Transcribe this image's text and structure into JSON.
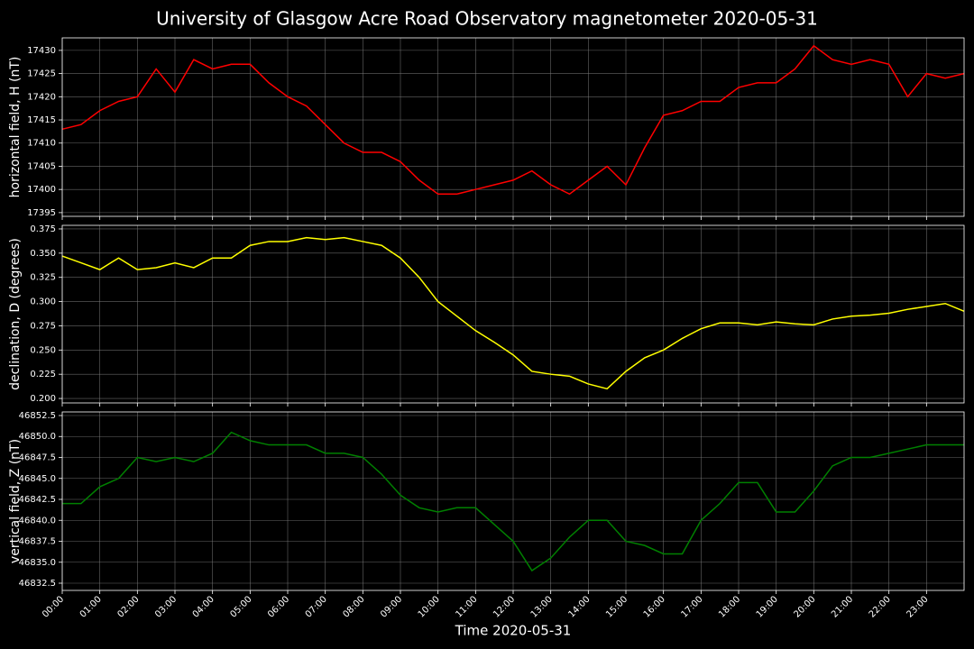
{
  "title": "University of Glasgow Acre Road Observatory magnetometer 2020-05-31",
  "chart_data": [
    {
      "type": "line",
      "y_label": "horizontal field, H (nT)",
      "color": "#ff0000",
      "grid": true,
      "x": [
        0,
        0.5,
        1,
        1.5,
        2,
        2.5,
        3,
        3.5,
        4,
        4.5,
        5,
        5.5,
        6,
        6.5,
        7,
        7.5,
        8,
        8.5,
        9,
        9.5,
        10,
        10.5,
        11,
        11.5,
        12,
        12.5,
        13,
        13.5,
        14,
        14.5,
        15,
        15.5,
        16,
        16.5,
        17,
        17.5,
        18,
        18.5,
        19,
        19.5,
        20,
        20.5,
        21,
        21.5,
        22,
        22.5,
        23,
        23.5,
        24
      ],
      "values": [
        17413,
        17414,
        17417,
        17419,
        17420,
        17426,
        17421,
        17428,
        17426,
        17427,
        17427,
        17423,
        17420,
        17418,
        17414,
        17410,
        17408,
        17408,
        17406,
        17402,
        17399,
        17399,
        17400,
        17401,
        17402,
        17404,
        17401,
        17399,
        17402,
        17405,
        17401,
        17409,
        17416,
        17417,
        17419,
        17419,
        17422,
        17423,
        17423,
        17426,
        17431,
        17428,
        17427,
        17428,
        17427,
        17420,
        17425,
        17424,
        17425
      ],
      "xlim": [
        0,
        24
      ],
      "ylim": [
        17394.2,
        17432.7
      ],
      "yticks": [
        17395,
        17400,
        17405,
        17410,
        17415,
        17420,
        17425,
        17430
      ]
    },
    {
      "type": "line",
      "y_label": "declination, D (degrees)",
      "color": "#ffff00",
      "grid": true,
      "x": [
        0,
        0.5,
        1,
        1.5,
        2,
        2.5,
        3,
        3.5,
        4,
        4.5,
        5,
        5.5,
        6,
        6.5,
        7,
        7.5,
        8,
        8.5,
        9,
        9.5,
        10,
        10.5,
        11,
        11.5,
        12,
        12.5,
        13,
        13.5,
        14,
        14.5,
        15,
        15.5,
        16,
        16.5,
        17,
        17.5,
        18,
        18.5,
        19,
        19.5,
        20,
        20.5,
        21,
        21.5,
        22,
        22.5,
        23,
        23.5,
        24
      ],
      "values": [
        0.347,
        0.34,
        0.333,
        0.345,
        0.333,
        0.335,
        0.34,
        0.335,
        0.345,
        0.345,
        0.358,
        0.362,
        0.362,
        0.366,
        0.364,
        0.366,
        0.362,
        0.358,
        0.345,
        0.325,
        0.3,
        0.285,
        0.27,
        0.258,
        0.245,
        0.228,
        0.225,
        0.223,
        0.215,
        0.21,
        0.228,
        0.242,
        0.25,
        0.262,
        0.272,
        0.278,
        0.278,
        0.276,
        0.279,
        0.277,
        0.276,
        0.282,
        0.285,
        0.286,
        0.288,
        0.292,
        0.295,
        0.298,
        0.29
      ],
      "xlim": [
        0,
        24
      ],
      "ylim": [
        0.1954,
        0.3787
      ],
      "yticks": [
        {
          "value": 0.2,
          "label": "0.200"
        },
        {
          "value": 0.225,
          "label": "0.225"
        },
        {
          "value": 0.25,
          "label": "0.250"
        },
        {
          "value": 0.275,
          "label": "0.275"
        },
        {
          "value": 0.3,
          "label": "0.300"
        },
        {
          "value": 0.325,
          "label": "0.325"
        },
        {
          "value": 0.35,
          "label": "0.350"
        },
        {
          "value": 0.375,
          "label": "0.375"
        }
      ]
    },
    {
      "type": "line",
      "y_label": "vertical field, Z (nT)",
      "x_label": "Time 2020-05-31",
      "color": "#008000",
      "grid": true,
      "x": [
        0,
        0.5,
        1,
        1.5,
        2,
        2.5,
        3,
        3.5,
        4,
        4.5,
        5,
        5.5,
        6,
        6.5,
        7,
        7.5,
        8,
        8.5,
        9,
        9.5,
        10,
        10.5,
        11,
        11.5,
        12,
        12.5,
        13,
        13.5,
        14,
        14.5,
        15,
        15.5,
        16,
        16.5,
        17,
        17.5,
        18,
        18.5,
        19,
        19.5,
        20,
        20.5,
        21,
        21.5,
        22,
        22.5,
        23,
        23.5,
        24
      ],
      "values": [
        46842,
        46842,
        46844,
        46845,
        46847.5,
        46847,
        46847.5,
        46847,
        46848,
        46850.5,
        46849.5,
        46849,
        46849,
        46849,
        46848,
        46848,
        46847.5,
        46845.5,
        46843,
        46841.5,
        46841,
        46841.5,
        46841.5,
        46839.5,
        46837.5,
        46834,
        46835.5,
        46838,
        46840,
        46840,
        46837.5,
        46837,
        46836,
        46836,
        46840,
        46842,
        46844.5,
        46844.5,
        46841,
        46841,
        46843.5,
        46846.5,
        46847.5,
        46847.5,
        46848,
        46848.5,
        46849,
        46849,
        46849
      ],
      "xlim": [
        0,
        24
      ],
      "ylim": [
        46831.64,
        46852.93
      ],
      "yticks": [
        {
          "value": 46832.5,
          "label": "46832.5"
        },
        {
          "value": 46835,
          "label": "46835.0"
        },
        {
          "value": 46837.5,
          "label": "46837.5"
        },
        {
          "value": 46840,
          "label": "46840.0"
        },
        {
          "value": 46842.5,
          "label": "46842.5"
        },
        {
          "value": 46845,
          "label": "46845.0"
        },
        {
          "value": 46847.5,
          "label": "46847.5"
        },
        {
          "value": 46850,
          "label": "46850.0"
        },
        {
          "value": 46852.5,
          "label": "46852.5"
        }
      ],
      "xticks": [
        {
          "value": 0,
          "label": "00:00"
        },
        {
          "value": 1,
          "label": "01:00"
        },
        {
          "value": 2,
          "label": "02:00"
        },
        {
          "value": 3,
          "label": "03:00"
        },
        {
          "value": 4,
          "label": "04:00"
        },
        {
          "value": 5,
          "label": "05:00"
        },
        {
          "value": 6,
          "label": "06:00"
        },
        {
          "value": 7,
          "label": "07:00"
        },
        {
          "value": 8,
          "label": "08:00"
        },
        {
          "value": 9,
          "label": "09:00"
        },
        {
          "value": 10,
          "label": "10:00"
        },
        {
          "value": 11,
          "label": "11:00"
        },
        {
          "value": 12,
          "label": "12:00"
        },
        {
          "value": 13,
          "label": "13:00"
        },
        {
          "value": 14,
          "label": "14:00"
        },
        {
          "value": 15,
          "label": "15:00"
        },
        {
          "value": 16,
          "label": "16:00"
        },
        {
          "value": 17,
          "label": "17:00"
        },
        {
          "value": 18,
          "label": "18:00"
        },
        {
          "value": 19,
          "label": "19:00"
        },
        {
          "value": 20,
          "label": "20:00"
        },
        {
          "value": 21,
          "label": "21:00"
        },
        {
          "value": 22,
          "label": "22:00"
        },
        {
          "value": 23,
          "label": "23:00"
        }
      ]
    }
  ]
}
